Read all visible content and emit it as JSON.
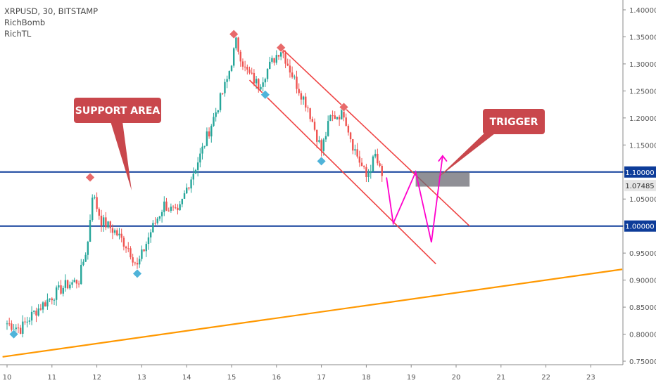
{
  "legend": {
    "symbol_line": "XRPUSD, 30, BITSTAMP",
    "indicator_1": "RichBomb",
    "indicator_2": "RichTL"
  },
  "callouts": {
    "support": "SUPPORT AREA",
    "trigger": "TRIGGER"
  },
  "price_labels": {
    "upper_level": "1.10000",
    "current": "1.07485",
    "lower_level": "1.00000"
  },
  "colors": {
    "up_candle": "#26a69a",
    "down_candle": "#ef5350",
    "level_line": "#0d3c99",
    "trendline": "#ff9800",
    "channel": "#ef4444",
    "projection": "#ff00cc",
    "callout_box": "#c9474c",
    "signal_top": "#e86a6a",
    "signal_bottom": "#4fb3d9",
    "trigger_zone": "#6b6b73"
  },
  "chart_data": {
    "type": "candlestick",
    "symbol": "XRPUSD",
    "interval": "30",
    "exchange": "BITSTAMP",
    "x_axis_ticks": [
      "10",
      "11",
      "12",
      "13",
      "14",
      "15",
      "16",
      "17",
      "18",
      "19",
      "20",
      "21",
      "22",
      "23"
    ],
    "y_axis_ticks": [
      "1.40000",
      "1.35000",
      "1.30000",
      "1.25000",
      "1.20000",
      "1.15000",
      "1.10000",
      "1.05000",
      "1.00000",
      "0.95000",
      "0.90000",
      "0.85000",
      "0.80000",
      "0.75000"
    ],
    "ylim": [
      0.745,
      1.405
    ],
    "grid": false,
    "close_path": [
      {
        "x": 10.0,
        "y": 0.82
      },
      {
        "x": 10.3,
        "y": 0.81
      },
      {
        "x": 10.6,
        "y": 0.84
      },
      {
        "x": 11.0,
        "y": 0.87
      },
      {
        "x": 11.3,
        "y": 0.89
      },
      {
        "x": 11.6,
        "y": 0.9
      },
      {
        "x": 11.8,
        "y": 0.97
      },
      {
        "x": 11.9,
        "y": 1.06
      },
      {
        "x": 12.1,
        "y": 1.01
      },
      {
        "x": 12.4,
        "y": 0.99
      },
      {
        "x": 12.7,
        "y": 0.96
      },
      {
        "x": 12.9,
        "y": 0.925
      },
      {
        "x": 13.2,
        "y": 0.99
      },
      {
        "x": 13.5,
        "y": 1.04
      },
      {
        "x": 13.8,
        "y": 1.02
      },
      {
        "x": 14.0,
        "y": 1.07
      },
      {
        "x": 14.3,
        "y": 1.13
      },
      {
        "x": 14.6,
        "y": 1.2
      },
      {
        "x": 14.9,
        "y": 1.27
      },
      {
        "x": 15.1,
        "y": 1.34
      },
      {
        "x": 15.3,
        "y": 1.29
      },
      {
        "x": 15.6,
        "y": 1.26
      },
      {
        "x": 15.8,
        "y": 1.29
      },
      {
        "x": 16.1,
        "y": 1.33
      },
      {
        "x": 16.4,
        "y": 1.27
      },
      {
        "x": 16.7,
        "y": 1.22
      },
      {
        "x": 17.0,
        "y": 1.14
      },
      {
        "x": 17.2,
        "y": 1.2
      },
      {
        "x": 17.5,
        "y": 1.21
      },
      {
        "x": 17.7,
        "y": 1.15
      },
      {
        "x": 18.0,
        "y": 1.09
      },
      {
        "x": 18.2,
        "y": 1.13
      },
      {
        "x": 18.4,
        "y": 1.075
      }
    ],
    "signals_top": [
      {
        "x": 11.85,
        "y": 1.09
      },
      {
        "x": 15.05,
        "y": 1.355
      },
      {
        "x": 16.1,
        "y": 1.33
      },
      {
        "x": 17.5,
        "y": 1.22
      }
    ],
    "signals_bottom": [
      {
        "x": 10.15,
        "y": 0.8
      },
      {
        "x": 12.9,
        "y": 0.912
      },
      {
        "x": 15.75,
        "y": 1.243
      },
      {
        "x": 17.0,
        "y": 1.12
      }
    ],
    "horizontal_levels": [
      1.1,
      1.0
    ],
    "current_price": 1.07485,
    "trendline": [
      {
        "x": 9.9,
        "y": 0.758
      },
      {
        "x": 23.7,
        "y": 0.92
      }
    ],
    "channel_upper": [
      {
        "x": 16.1,
        "y": 1.33
      },
      {
        "x": 20.3,
        "y": 1.0
      }
    ],
    "channel_lower": [
      {
        "x": 15.4,
        "y": 1.27
      },
      {
        "x": 19.55,
        "y": 0.93
      }
    ],
    "projection_path": [
      {
        "x": 18.45,
        "y": 1.09
      },
      {
        "x": 18.6,
        "y": 1.005
      },
      {
        "x": 19.1,
        "y": 1.1
      },
      {
        "x": 19.45,
        "y": 0.97
      },
      {
        "x": 19.7,
        "y": 1.13
      }
    ],
    "trigger_zone": {
      "x_start": 19.1,
      "x_end": 20.3,
      "y_low": 1.073,
      "y_high": 1.1
    }
  }
}
